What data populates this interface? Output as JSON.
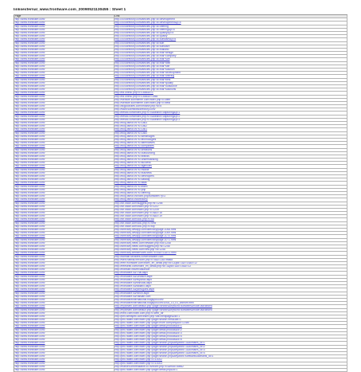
{
  "sheet": {
    "title": "linksexternal_www.frontware.com_20090521130455 : Sheet 1",
    "columns": [
      "Page",
      "Link"
    ],
    "rows": [
      [
        "http://www.frontware.com/",
        "http://200directory.com/articles.php?a=development"
      ],
      [
        "http://www.frontware.com/",
        "http://200directory.com/articles.php?a=development&p=5"
      ],
      [
        "http://www.frontware.com/",
        "http://200directory.com/articles.php?a=offering"
      ],
      [
        "http://www.frontware.com/",
        "http://200directory.com/articles.php?a=offering&p=5"
      ],
      [
        "http://www.frontware.com/",
        "http://200directory.com/articles.php?a=quality&p=5"
      ],
      [
        "http://www.frontware.com/",
        "http://200directory.com/articles.php?a=quality"
      ],
      [
        "http://www.frontware.com/",
        "http://200directory.com/articles.php?a=software&p=5"
      ],
      [
        "http://www.frontware.com/",
        "http://200directory.com/articles.php?a=soft"
      ],
      [
        "http://www.frontware.com/",
        "http://200directory.com/articles.php?a=software"
      ],
      [
        "http://www.frontware.com/",
        "http://200directory.com/articles.php?a=thailand"
      ],
      [
        "http://www.frontware.com/",
        "http://200directory.com/articles.php?a=thai+design"
      ],
      [
        "http://www.frontware.com/",
        "http://200directory.com/articles.php?a=thai+company"
      ],
      [
        "http://www.frontware.com/",
        "http://200directory.com/articles.php?a=thai+soft"
      ],
      [
        "http://www.frontware.com/",
        "http://200directory.com/articles.php?a=thai+web"
      ],
      [
        "http://www.frontware.com/",
        "http://200directory.com/articles.php?a=thai+site"
      ],
      [
        "http://www.frontware.com/",
        "http://200directory.com/articles.php?a=thai+solution"
      ],
      [
        "http://www.frontware.com/",
        "http://200directory.com/articles.php?a=thai+development"
      ],
      [
        "http://www.frontware.com/",
        "http://200directory.com/articles.php?a=thai+offering"
      ],
      [
        "http://www.frontware.com/",
        "http://200directory.com/articles.php?a=thai+best"
      ],
      [
        "http://www.frontware.com/",
        "http://200directory.com/articles.php?a=thai+quality"
      ],
      [
        "http://www.frontware.com/",
        "http://200directory.com/articles.php?a=thai+outsource"
      ],
      [
        "http://www.frontware.com/",
        "http://200directory.com/articles.php?a=thai+solutions"
      ],
      [
        "http://www.frontware.com/",
        "http://bd.unirsu.php?c=1848&c=1"
      ],
      [
        "http://www.frontware.com/",
        "http://bd.unirsu.php?c=1848&c=1864"
      ],
      [
        "http://www.frontware.com/",
        "http://website.submitfree.com/index.php?c=offer"
      ],
      [
        "http://www.frontware.com/",
        "http://website.submitfree.com/index.php?c=best"
      ],
      [
        "http://www.frontware.com/",
        "http://allgoodsites.com/browse.php?id=5"
      ],
      [
        "http://www.frontware.com/",
        "http://www.submitlinkdirectory.com/"
      ],
      [
        "http://www.frontware.com/",
        "http://bestol.com/index.php?c=0&search=capturing&p=1"
      ],
      [
        "http://www.frontware.com/",
        "http://bestol.com/index.php?c=0&search=capturing&p=2"
      ],
      [
        "http://www.frontware.com/",
        "http://bestol.com/index.php?c=0&search=capturing&p=3"
      ],
      [
        "http://www.frontware.com/",
        "http://blog.famot.in/?s=1863"
      ],
      [
        "http://www.frontware.com/",
        "http://blog.famot.in/?s=1862"
      ],
      [
        "http://www.frontware.com/",
        "http://blog.famot.in/?s=1861"
      ],
      [
        "http://www.frontware.com/",
        "http://blog.famot.in/?s=1860"
      ],
      [
        "http://www.frontware.com/",
        "http://blog.famot.in/?s=webimages"
      ],
      [
        "http://www.frontware.com/",
        "http://blog.famot.in/?s=technologies"
      ],
      [
        "http://www.frontware.com/",
        "http://blog.famot.in/?s=alternatives"
      ],
      [
        "http://www.frontware.com/",
        "http://blog.famot.in/?s=companies"
      ],
      [
        "http://www.frontware.com/",
        "http://blog.famot.in/?s=creations"
      ],
      [
        "http://www.frontware.com/",
        "http://blog.famot.in/?s=outsourcing"
      ],
      [
        "http://www.frontware.com/",
        "http://blog.famot.in/?s=brands"
      ],
      [
        "http://www.frontware.com/",
        "http://blog.famot.in/?s=understanding"
      ],
      [
        "http://www.frontware.com/",
        "http://blog.famot.in/?s=success"
      ],
      [
        "http://www.frontware.com/",
        "http://blog.famot.in/?s=agencies"
      ],
      [
        "http://www.frontware.com/",
        "http://blog.famot.in/?s=mobile"
      ],
      [
        "http://www.frontware.com/",
        "http://blog.famot.in/?s=business"
      ],
      [
        "http://www.frontware.com/",
        "http://blog.famot.in/?s=developers"
      ],
      [
        "http://www.frontware.com/",
        "http://blog.famot.in/?s=catalog"
      ],
      [
        "http://www.frontware.com/",
        "http://blog.famot.in/?s=alias"
      ],
      [
        "http://www.frontware.com/",
        "http://blog.famot.in/?s=index"
      ],
      [
        "http://www.frontware.com/",
        "http://blog.famot.in/?s=php"
      ],
      [
        "http://www.frontware.com/",
        "http://blog.famot.in/?s=offering"
      ],
      [
        "http://www.frontware.com/",
        "http://blog.famot.in/index.php/software/?p=2"
      ],
      [
        "http://www.frontware.com/",
        "http://blog.famot.in/directory/"
      ],
      [
        "http://www.frontware.com/",
        "http://dir.otcdir.com/suggest.php?id=1258"
      ],
      [
        "http://www.frontware.com/",
        "http://dir.otcdir.com/index.php?c=1247"
      ],
      [
        "http://www.frontware.com/",
        "http://dir.otcdir.com/index.php?c=1249"
      ],
      [
        "http://www.frontware.com/",
        "http://dir.otcdir.com/index.php?c=a&c=18"
      ],
      [
        "http://www.frontware.com/",
        "http://dir.otcdir.com/index.php?c=a&c=19"
      ],
      [
        "http://www.frontware.com/",
        "http://dir.otcdir.com/cou.php?c=68"
      ],
      [
        "http://www.frontware.com/",
        "http://dir.otcdir.com/cou.php?c=new"
      ],
      [
        "http://www.frontware.com/",
        "http://dir.otcdir.com/cou.php?c=top"
      ],
      [
        "http://www.frontware.com/",
        "http://directory.devapp.com/directory/page-1068.html"
      ],
      [
        "http://www.frontware.com/",
        "http://directory.devapp.com/directory/page-1069.html"
      ],
      [
        "http://www.frontware.com/",
        "http://directory.devapp.com/directory/page-1070.html"
      ],
      [
        "http://www.frontware.com/",
        "http://directory.devapp.com/directory/page-1071.html"
      ],
      [
        "http://www.frontware.com/",
        "http://directory.netek.com/newsite.php?cid=1258"
      ],
      [
        "http://www.frontware.com/",
        "http://directory.netek.com/suggest.php?id=1258"
      ],
      [
        "http://www.frontware.com/",
        "http://directory.netek.com/new.php?id=1258"
      ],
      [
        "http://www.frontware.com/",
        "http://directory.webservices.com/?c=c&c=1&c=2.html"
      ],
      [
        "http://www.frontware.com/",
        "http://domain.seosites.com/frontware.com"
      ],
      [
        "http://www.frontware.com/",
        "http://web.hatthai.net/cont.php?c=d&c=2&c=tfasia"
      ],
      [
        "http://www.frontware.com/",
        "http://free.frontware.com/index_en_detail.php?id=1&pid=1&c=15&c=12"
      ],
      [
        "http://www.frontware.com/",
        "http://freeseek.com/index_en_detail.php?id=1&pid=1&c=15&c=12"
      ],
      [
        "http://www.frontware.com/",
        "http://frontsite.info/en/asia/sort"
      ],
      [
        "http://www.frontware.com/",
        "http://frontware.su/Thai.aspx"
      ],
      [
        "http://www.frontware.com/",
        "http://frontware.su/Deutsch.aspx"
      ],
      [
        "http://www.frontware.com/",
        "http://frontware.su/espanol.aspx"
      ],
      [
        "http://www.frontware.com/",
        "http://frontware.su/francais.aspx"
      ],
      [
        "http://www.frontware.com/",
        "http://frontware.su/italiano.aspx"
      ],
      [
        "http://www.frontware.com/",
        "http://frontware.su/portugues.aspx"
      ],
      [
        "http://www.frontware.com/",
        "http://frontware.su/nihon.aspx"
      ],
      [
        "http://www.frontware.com/",
        "http://frontware.su/russian.com"
      ],
      [
        "http://www.frontware.com/",
        "http://frontwareinternational.blogspot.com/"
      ],
      [
        "http://www.frontware.com/",
        "http://frontwareinternational.blogspot.com/2008_10_01_archive.html"
      ],
      [
        "http://www.frontware.com/",
        "http://mysmartl.com/default.php?page=search&keyword=software&mode=advanced"
      ],
      [
        "http://www.frontware.com/",
        "http://mysmartl.com/default.php?page=search&keyword=software&mode=advanced"
      ],
      [
        "http://www.frontware.com/",
        "http://nerd.com/index.com.php?c=web_dir"
      ],
      [
        "http://www.frontware.com/",
        "http://pns.webspek.com/index.php?cat=nextpage&cid=1"
      ],
      [
        "http://www.frontware.com/",
        "http://pnk.radeit.com/index.php?page=search.html&cat=1"
      ],
      [
        "http://www.frontware.com/",
        "http://pnk.radeit.com/index.php?page=more.company&id=12380"
      ],
      [
        "http://www.frontware.com/",
        "http://pnk.radeit.com/index.php?page=detail.product&id=1"
      ],
      [
        "http://www.frontware.com/",
        "http://pnk.radeit.com/index.php?page=detail.product&id=2"
      ],
      [
        "http://www.frontware.com/",
        "http://pnk.radeit.com/index.php?page=detail.product&id=3"
      ],
      [
        "http://www.frontware.com/",
        "http://pnk.radeit.com/index.php?page=detail.product&id=4"
      ],
      [
        "http://www.frontware.com/",
        "http://pnk.radeit.com/index.php?page=detail.product&id=5"
      ],
      [
        "http://www.frontware.com/",
        "http://pnk.radeit.com/index.php?page=search.php&keyword=1&domains_id=1"
      ],
      [
        "http://www.frontware.com/",
        "http://pnk.radeit.com/index.php?page=search.php&keyword=1&domains_id=2"
      ],
      [
        "http://www.frontware.com/",
        "http://pnk.radeit.com/index.php?page=search.php&keyword=1&domains_id=3"
      ],
      [
        "http://www.frontware.com/",
        "http://pnk.radeit.com/index.php?page=search.php&keyword=1&domains_id=4"
      ],
      [
        "http://www.frontware.com/",
        "http://pnk.radeit.com/index.php?page=search.php&keyword=software&domains_id=1"
      ],
      [
        "http://www.frontware.com/",
        "http://pnk.radeit.com/index.php?c=10002"
      ],
      [
        "http://www.frontware.com/",
        "http://pnk.radeit.com/index.php?c=10003"
      ],
      [
        "http://www.frontware.com/",
        "http://market.umbreakable.co.th/index.php?c=&mod=49862"
      ],
      [
        "http://www.frontware.com/",
        "http://pnk.radeit.com/index.php?page=detail.php&id=1"
      ]
    ]
  }
}
